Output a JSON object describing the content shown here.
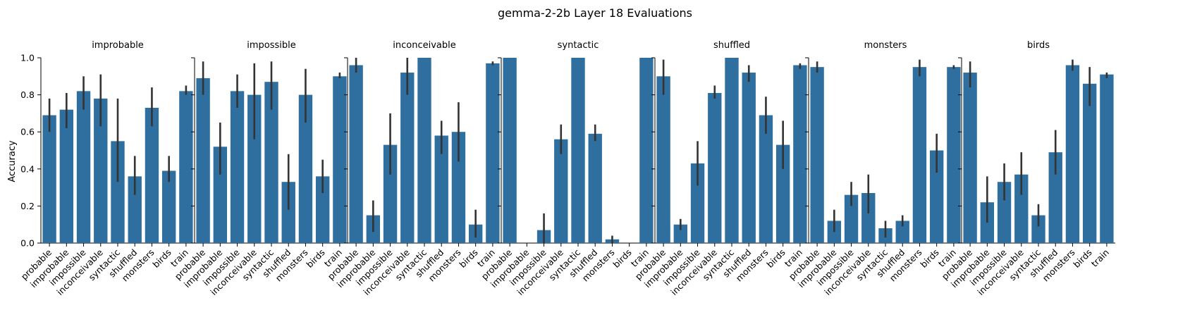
{
  "figure_title": "gemma-2-2b Layer 18 Evaluations",
  "ylabel": "Accuracy",
  "y_ticks": [
    "0.0",
    "0.2",
    "0.4",
    "0.6",
    "0.8",
    "1.0"
  ],
  "colors": {
    "bar": "#2f6f9f",
    "errorbar": "#333333",
    "axis": "#000000"
  },
  "chart_data": [
    {
      "type": "bar",
      "title": "improbable",
      "categories": [
        "probable",
        "improbable",
        "impossible",
        "inconceivable",
        "syntactic",
        "shuffled",
        "monsters",
        "birds",
        "train"
      ],
      "values": [
        0.69,
        0.72,
        0.82,
        0.78,
        0.55,
        0.36,
        0.73,
        0.39,
        0.82
      ],
      "ci": [
        [
          0.6,
          0.78
        ],
        [
          0.62,
          0.81
        ],
        [
          0.72,
          0.9
        ],
        [
          0.63,
          0.91
        ],
        [
          0.33,
          0.78
        ],
        [
          0.26,
          0.47
        ],
        [
          0.63,
          0.84
        ],
        [
          0.33,
          0.47
        ],
        [
          0.8,
          0.85
        ]
      ],
      "ylim": [
        0,
        1
      ]
    },
    {
      "type": "bar",
      "title": "impossible",
      "categories": [
        "probable",
        "improbable",
        "impossible",
        "inconceivable",
        "syntactic",
        "shuffled",
        "monsters",
        "birds",
        "train"
      ],
      "values": [
        0.89,
        0.52,
        0.82,
        0.8,
        0.87,
        0.33,
        0.8,
        0.36,
        0.9
      ],
      "ci": [
        [
          0.8,
          0.98
        ],
        [
          0.37,
          0.65
        ],
        [
          0.73,
          0.91
        ],
        [
          0.56,
          0.97
        ],
        [
          0.72,
          0.98
        ],
        [
          0.18,
          0.48
        ],
        [
          0.65,
          0.94
        ],
        [
          0.27,
          0.45
        ],
        [
          0.89,
          0.92
        ]
      ],
      "ylim": [
        0,
        1
      ]
    },
    {
      "type": "bar",
      "title": "inconceivable",
      "categories": [
        "probable",
        "improbable",
        "impossible",
        "inconceivable",
        "syntactic",
        "shuffled",
        "monsters",
        "birds",
        "train"
      ],
      "values": [
        0.96,
        0.15,
        0.53,
        0.92,
        1.0,
        0.58,
        0.6,
        0.1,
        0.97
      ],
      "ci": [
        [
          0.92,
          1.0
        ],
        [
          0.06,
          0.23
        ],
        [
          0.37,
          0.7
        ],
        [
          0.8,
          1.0
        ],
        [
          1.0,
          1.0
        ],
        [
          0.48,
          0.66
        ],
        [
          0.44,
          0.76
        ],
        [
          0.03,
          0.18
        ],
        [
          0.96,
          0.98
        ]
      ],
      "ylim": [
        0,
        1
      ]
    },
    {
      "type": "bar",
      "title": "syntactic",
      "categories": [
        "probable",
        "improbable",
        "impossible",
        "inconceivable",
        "syntactic",
        "shuffled",
        "monsters",
        "birds",
        "train"
      ],
      "values": [
        1.0,
        0.0,
        0.07,
        0.56,
        1.0,
        0.59,
        0.02,
        0.0,
        1.0
      ],
      "ci": [
        [
          1.0,
          1.0
        ],
        [
          0.0,
          0.0
        ],
        [
          0.0,
          0.16
        ],
        [
          0.48,
          0.64
        ],
        [
          1.0,
          1.0
        ],
        [
          0.55,
          0.64
        ],
        [
          0.0,
          0.04
        ],
        [
          0.0,
          0.0
        ],
        [
          1.0,
          1.0
        ]
      ],
      "ylim": [
        0,
        1
      ]
    },
    {
      "type": "bar",
      "title": "shuffled",
      "categories": [
        "probable",
        "improbable",
        "impossible",
        "inconceivable",
        "syntactic",
        "shuffled",
        "monsters",
        "birds",
        "train"
      ],
      "values": [
        0.9,
        0.1,
        0.43,
        0.81,
        1.0,
        0.92,
        0.69,
        0.53,
        0.96
      ],
      "ci": [
        [
          0.8,
          0.99
        ],
        [
          0.07,
          0.13
        ],
        [
          0.31,
          0.55
        ],
        [
          0.78,
          0.85
        ],
        [
          1.0,
          1.0
        ],
        [
          0.87,
          0.96
        ],
        [
          0.59,
          0.79
        ],
        [
          0.4,
          0.66
        ],
        [
          0.94,
          0.97
        ]
      ],
      "ylim": [
        0,
        1
      ]
    },
    {
      "type": "bar",
      "title": "monsters",
      "categories": [
        "probable",
        "improbable",
        "impossible",
        "inconceivable",
        "syntactic",
        "shuffled",
        "monsters",
        "birds",
        "train"
      ],
      "values": [
        0.95,
        0.12,
        0.26,
        0.27,
        0.08,
        0.12,
        0.95,
        0.5,
        0.95
      ],
      "ci": [
        [
          0.92,
          0.98
        ],
        [
          0.06,
          0.18
        ],
        [
          0.2,
          0.33
        ],
        [
          0.16,
          0.37
        ],
        [
          0.03,
          0.12
        ],
        [
          0.09,
          0.15
        ],
        [
          0.9,
          0.99
        ],
        [
          0.38,
          0.59
        ],
        [
          0.94,
          0.96
        ]
      ],
      "ylim": [
        0,
        1
      ]
    },
    {
      "type": "bar",
      "title": "birds",
      "categories": [
        "probable",
        "improbable",
        "impossible",
        "inconceivable",
        "syntactic",
        "shuffled",
        "monsters",
        "birds",
        "train"
      ],
      "values": [
        0.92,
        0.22,
        0.33,
        0.37,
        0.15,
        0.49,
        0.96,
        0.86,
        0.91
      ],
      "ci": [
        [
          0.84,
          0.98
        ],
        [
          0.11,
          0.36
        ],
        [
          0.23,
          0.43
        ],
        [
          0.26,
          0.49
        ],
        [
          0.09,
          0.21
        ],
        [
          0.37,
          0.61
        ],
        [
          0.93,
          0.99
        ],
        [
          0.74,
          0.95
        ],
        [
          0.89,
          0.92
        ]
      ],
      "ylim": [
        0,
        1
      ]
    }
  ]
}
